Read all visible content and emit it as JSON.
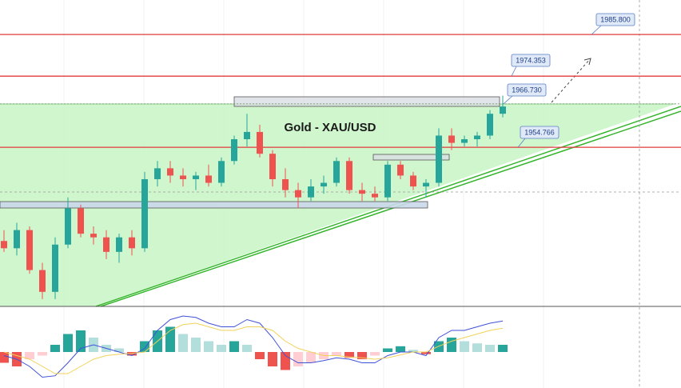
{
  "chart_data": {
    "type": "candlestick",
    "title": "Gold - XAU/USD",
    "ylim": [
      1911,
      1995.3
    ],
    "levels": [
      {
        "value": 1985.8,
        "label": "1985.800"
      },
      1974.353,
      {
        "value": 1966.73,
        "label": "1966.730"
      },
      1954.766
    ],
    "level_color": "#e03b3b",
    "up_color": "#26a69a",
    "down_color": "#ef5350",
    "open": [
      1929,
      1927,
      1932,
      1921,
      1915,
      1928,
      1938,
      1931,
      1930,
      1926,
      1930,
      1927,
      1946,
      1949,
      1947,
      1946,
      1947,
      1945,
      1951,
      1957,
      1959,
      1953,
      1946,
      1943,
      1941,
      1944,
      1945,
      1951,
      1943,
      1942,
      1941,
      1950,
      1947,
      1944,
      1945,
      1958,
      1956,
      1957,
      1958,
      1964
    ],
    "high": [
      1932,
      1934,
      1933,
      1923,
      1930,
      1941,
      1939,
      1933,
      1932,
      1931,
      1932,
      1948,
      1951,
      1951,
      1949,
      1948,
      1950,
      1952,
      1958,
      1964,
      1961,
      1954,
      1949,
      1945,
      1946,
      1947,
      1952,
      1952,
      1945,
      1944,
      1951,
      1951,
      1948,
      1946,
      1960,
      1960,
      1958,
      1959,
      1965,
      1969
    ],
    "low": [
      1926,
      1925,
      1920,
      1913,
      1913,
      1927,
      1930,
      1928,
      1924,
      1923,
      1925,
      1926,
      1944,
      1945,
      1944,
      1943,
      1944,
      1944,
      1950,
      1955,
      1952,
      1944,
      1941,
      1938,
      1940,
      1942,
      1944,
      1942,
      1940,
      1940,
      1940,
      1946,
      1943,
      1941,
      1944,
      1954,
      1955,
      1955,
      1957,
      1963
    ],
    "close": [
      1927,
      1932,
      1921,
      1915,
      1928,
      1938,
      1931,
      1930,
      1926,
      1930,
      1927,
      1946,
      1949,
      1947,
      1946,
      1947,
      1945,
      1951,
      1957,
      1959,
      1953,
      1946,
      1943,
      1941,
      1944,
      1945,
      1951,
      1943,
      1942,
      1941,
      1950,
      1947,
      1944,
      1945,
      1958,
      1956,
      1957,
      1958,
      1964,
      1966
    ],
    "macd": {
      "ylim": [
        -5,
        5
      ],
      "histogram": [
        -1.5,
        -2,
        -1,
        -0.5,
        1,
        2.5,
        3,
        2,
        1,
        0.5,
        -0.5,
        1.5,
        3,
        3.5,
        2.5,
        2,
        1.5,
        1,
        1.5,
        1,
        -1,
        -2,
        -2.5,
        -2,
        -1.5,
        -1,
        -0.5,
        -0.8,
        -1,
        -0.5,
        0.5,
        0.8,
        0.3,
        -0.3,
        1.5,
        2,
        1.5,
        1.2,
        1,
        1
      ],
      "series": [
        {
          "color": "#3f51d8",
          "values": [
            -0.5,
            -1,
            -2,
            -3.5,
            -3.3,
            -1.5,
            0.5,
            1,
            0.5,
            0,
            -0.5,
            0.5,
            3,
            4.5,
            5,
            4.8,
            4,
            3.5,
            3.5,
            4.5,
            4,
            2,
            -0.5,
            -1.5,
            -1.5,
            -1.2,
            -0.8,
            -1,
            -1.5,
            -1.5,
            -0.5,
            0,
            0,
            -0.5,
            2,
            3,
            3,
            3.5,
            4,
            4.3
          ]
        },
        {
          "color": "#f2d25a",
          "values": [
            0,
            -0.5,
            -1,
            -2,
            -3,
            -3,
            -2,
            -1,
            -0.5,
            -0.3,
            -0.2,
            0,
            1.5,
            3,
            3.8,
            4,
            3.5,
            3,
            3,
            3.5,
            3.5,
            3,
            1.5,
            0.5,
            0,
            -0.5,
            -0.5,
            -0.7,
            -0.8,
            -1,
            -0.8,
            -0.4,
            0,
            0,
            0.8,
            1.5,
            2,
            2.5,
            3,
            3.3
          ]
        }
      ]
    }
  }
}
